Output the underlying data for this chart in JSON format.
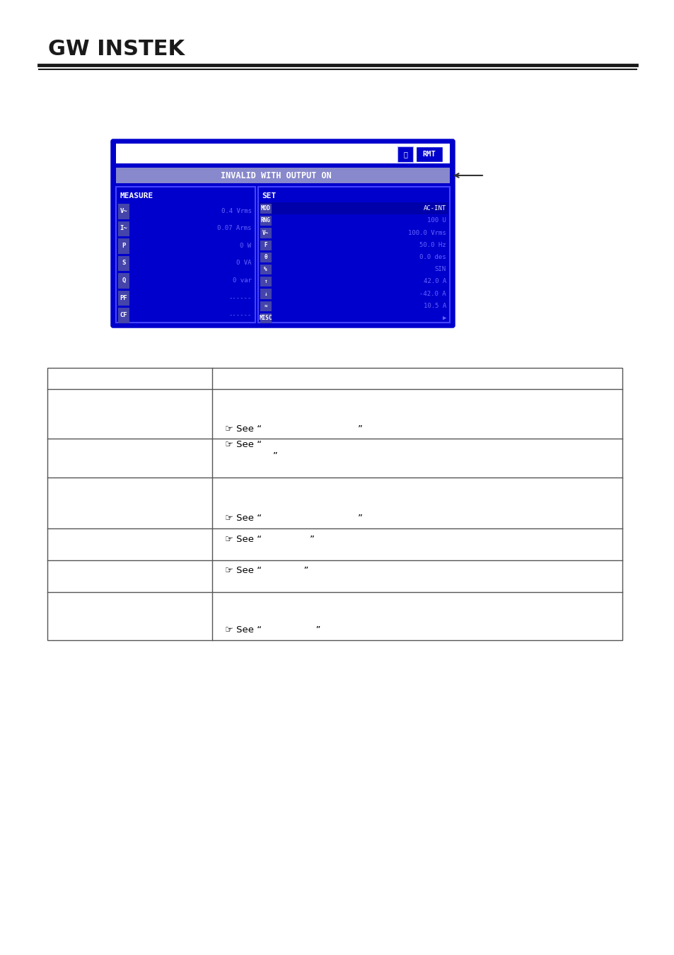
{
  "bg_color": "#ffffff",
  "logo_text": "GW INSTEK",
  "screen_bg": "#0000cc",
  "screen_border": "#0000ff",
  "screen_top_bar_bg": "#ffffff",
  "screen_msg_bar_bg": "#9999ff",
  "screen_msg_text": "INVALID WITH OUTPUT ON",
  "screen_rmt_bg": "#0000cc",
  "screen_lock_bg": "#0000cc",
  "measure_panel_bg": "#0000cc",
  "set_panel_bg": "#0000cc",
  "measure_rows": [
    {
      "label": "V~",
      "value": "0.4 Vrms"
    },
    {
      "label": "I~",
      "value": "0.07 Arms"
    },
    {
      "label": "P",
      "value": "0 W"
    },
    {
      "label": "S",
      "value": "0 VA"
    },
    {
      "label": "Q",
      "value": "0 var"
    },
    {
      "label": "PF",
      "value": "------"
    },
    {
      "label": "CF",
      "value": "------"
    }
  ],
  "set_rows": [
    {
      "label": "MOD",
      "value": "AC-INT",
      "highlight": true
    },
    {
      "label": "RNG",
      "value": "100 U"
    },
    {
      "label": "V~",
      "value": "100.0 Vrms"
    },
    {
      "label": "F",
      "value": "50.0 Hz"
    },
    {
      "label": "θ",
      "value": "0.0 des"
    },
    {
      "label": "%",
      "value": "SIN"
    },
    {
      "label": "↑",
      "value": "42.0 A"
    },
    {
      "label": "↓",
      "value": "-42.0 A"
    },
    {
      "label": "≈",
      "value": "10.5 A"
    },
    {
      "label": "MISC",
      "value": "▶"
    }
  ],
  "table_rows": [
    {
      "col1": "",
      "col2": "",
      "is_header": true
    },
    {
      "col1": "",
      "col2": "☞ See \"                              \"",
      "is_header": false,
      "col2_extra": "",
      "tall": true
    },
    {
      "col1": "",
      "col2": "☞ See \"\n                \"",
      "is_header": false,
      "tall": false
    },
    {
      "col1": "",
      "col2": "☞ See \"                              \"",
      "is_header": false,
      "tall": true
    },
    {
      "col1": "",
      "col2": "☞ See \"              \"",
      "is_header": false,
      "tall": false
    },
    {
      "col1": "",
      "col2": "☞ See \"            \"",
      "is_header": false,
      "tall": false
    },
    {
      "col1": "",
      "col2": "☞ See \"                \"",
      "is_header": false,
      "tall": true
    }
  ]
}
